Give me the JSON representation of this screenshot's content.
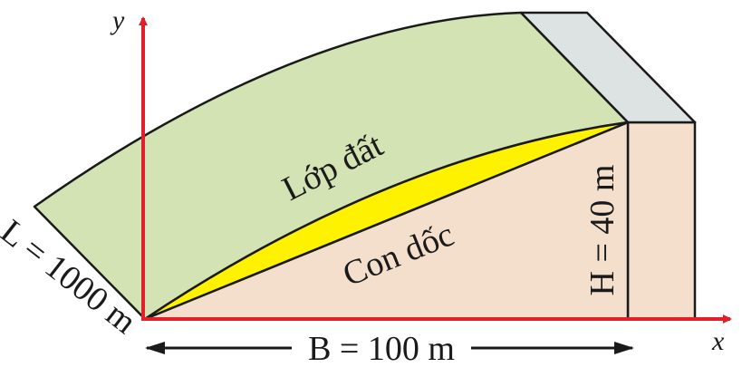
{
  "diagram": {
    "soil_layer_label": "Lớp đất",
    "slope_label": "Con dốc",
    "height_label": "H = 40 m",
    "length_label": "L = 1000 m",
    "base_label": "B = 100 m",
    "x_axis_label": "x",
    "y_axis_label": "y"
  },
  "colors": {
    "soil_layer": "#d4e3b4",
    "slope_body": "#f3dfcc",
    "yellow_gap": "#fff200",
    "side_face_gray": "#dde3e3",
    "axis_red": "#e0202a",
    "outline": "#1a1a1a"
  }
}
